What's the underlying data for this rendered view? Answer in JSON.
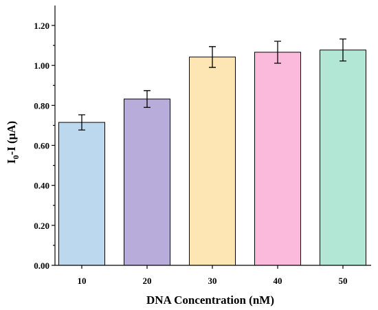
{
  "chart_data": {
    "type": "bar",
    "categories": [
      "10",
      "20",
      "30",
      "40",
      "50"
    ],
    "values": [
      0.715,
      0.832,
      1.042,
      1.066,
      1.077
    ],
    "errors": [
      0.038,
      0.042,
      0.052,
      0.055,
      0.055
    ],
    "bar_colors": [
      "#bcd8ee",
      "#b8acdb",
      "#fde5b4",
      "#fbb9dc",
      "#b2e6d5"
    ],
    "xlabel": "DNA Concentration (nM)",
    "ylabel": {
      "main": "I",
      "sub": "0",
      "rest": "-I (μA)"
    },
    "ylim": [
      0,
      1.2
    ],
    "yticks": [
      "0.00",
      "0.20",
      "0.40",
      "0.60",
      "0.80",
      "1.00",
      "1.20"
    ],
    "grid": false,
    "legend": "none"
  }
}
